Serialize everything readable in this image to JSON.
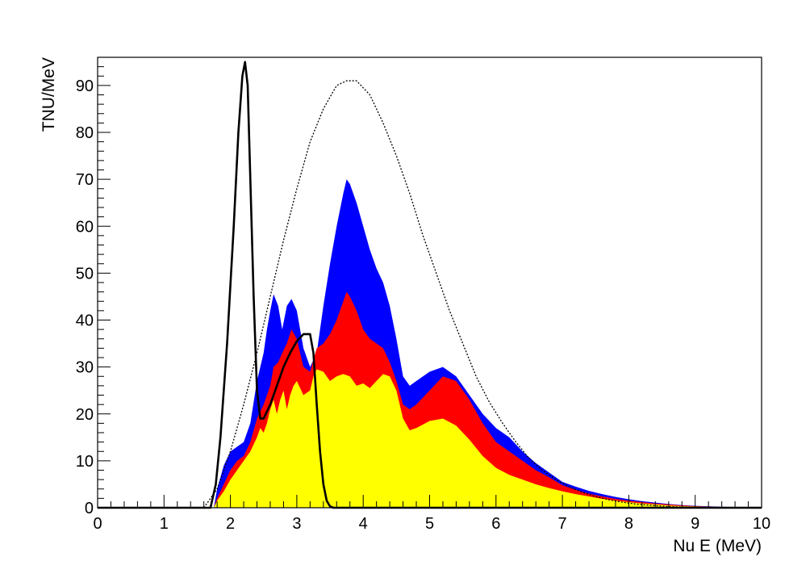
{
  "chart_data": {
    "type": "area",
    "title": "",
    "xlabel": "Nu E (MeV)",
    "ylabel": "TNU/MeV",
    "xlim": [
      0,
      10
    ],
    "ylim": [
      0,
      96
    ],
    "x_ticks": [
      0,
      1,
      2,
      3,
      4,
      5,
      6,
      7,
      8,
      9,
      10
    ],
    "y_ticks": [
      0,
      10,
      20,
      30,
      40,
      50,
      60,
      70,
      80,
      90
    ],
    "grid": false,
    "legend": "none",
    "series": [
      {
        "color": "#0000ff",
        "style": "filled",
        "points": [
          [
            1.75,
            0
          ],
          [
            1.8,
            4
          ],
          [
            1.9,
            9
          ],
          [
            2.0,
            12
          ],
          [
            2.1,
            13
          ],
          [
            2.2,
            14
          ],
          [
            2.3,
            18
          ],
          [
            2.4,
            27
          ],
          [
            2.5,
            33
          ],
          [
            2.55,
            38
          ],
          [
            2.6,
            42
          ],
          [
            2.65,
            45.5
          ],
          [
            2.72,
            43
          ],
          [
            2.78,
            38
          ],
          [
            2.85,
            43
          ],
          [
            2.92,
            44.5
          ],
          [
            3.0,
            42
          ],
          [
            3.1,
            34
          ],
          [
            3.2,
            30
          ],
          [
            3.3,
            33
          ],
          [
            3.4,
            43
          ],
          [
            3.5,
            52
          ],
          [
            3.6,
            60
          ],
          [
            3.7,
            67
          ],
          [
            3.75,
            70
          ],
          [
            3.8,
            69
          ],
          [
            3.9,
            65
          ],
          [
            4.0,
            60
          ],
          [
            4.1,
            55
          ],
          [
            4.2,
            51
          ],
          [
            4.3,
            48
          ],
          [
            4.4,
            43
          ],
          [
            4.5,
            36
          ],
          [
            4.6,
            28
          ],
          [
            4.7,
            26
          ],
          [
            4.8,
            27
          ],
          [
            5.0,
            29
          ],
          [
            5.2,
            30
          ],
          [
            5.4,
            28
          ],
          [
            5.6,
            24
          ],
          [
            5.8,
            20
          ],
          [
            6.0,
            17
          ],
          [
            6.2,
            15
          ],
          [
            6.4,
            12
          ],
          [
            6.6,
            9.5
          ],
          [
            6.8,
            7.5
          ],
          [
            7.0,
            5.5
          ],
          [
            7.2,
            4.5
          ],
          [
            7.4,
            3.6
          ],
          [
            7.6,
            2.9
          ],
          [
            7.8,
            2.3
          ],
          [
            8.0,
            1.8
          ],
          [
            8.2,
            1.4
          ],
          [
            8.4,
            1.1
          ],
          [
            8.6,
            0.8
          ],
          [
            8.8,
            0.55
          ],
          [
            9.0,
            0.4
          ],
          [
            9.3,
            0.25
          ],
          [
            9.6,
            0.12
          ],
          [
            10.0,
            0
          ]
        ]
      },
      {
        "color": "#ff0000",
        "style": "filled",
        "points": [
          [
            1.75,
            0
          ],
          [
            1.8,
            2
          ],
          [
            1.9,
            5
          ],
          [
            2.0,
            8
          ],
          [
            2.1,
            10
          ],
          [
            2.2,
            11
          ],
          [
            2.3,
            14
          ],
          [
            2.4,
            19
          ],
          [
            2.5,
            22
          ],
          [
            2.6,
            26
          ],
          [
            2.65,
            30
          ],
          [
            2.72,
            31
          ],
          [
            2.78,
            33
          ],
          [
            2.85,
            35
          ],
          [
            2.92,
            38
          ],
          [
            3.0,
            36
          ],
          [
            3.1,
            30
          ],
          [
            3.2,
            29
          ],
          [
            3.3,
            34
          ],
          [
            3.4,
            35
          ],
          [
            3.5,
            37
          ],
          [
            3.6,
            40
          ],
          [
            3.7,
            44
          ],
          [
            3.75,
            46
          ],
          [
            3.8,
            45
          ],
          [
            3.9,
            42
          ],
          [
            4.0,
            38
          ],
          [
            4.1,
            36
          ],
          [
            4.2,
            35
          ],
          [
            4.3,
            34
          ],
          [
            4.4,
            31
          ],
          [
            4.5,
            27
          ],
          [
            4.6,
            22
          ],
          [
            4.7,
            21
          ],
          [
            4.8,
            22
          ],
          [
            5.0,
            25
          ],
          [
            5.2,
            28
          ],
          [
            5.4,
            27
          ],
          [
            5.6,
            23
          ],
          [
            5.8,
            18
          ],
          [
            6.0,
            14
          ],
          [
            6.2,
            12
          ],
          [
            6.4,
            10
          ],
          [
            6.6,
            8
          ],
          [
            6.8,
            6.5
          ],
          [
            7.0,
            4.8
          ],
          [
            7.2,
            3.8
          ],
          [
            7.4,
            3.0
          ],
          [
            7.6,
            2.4
          ],
          [
            7.8,
            1.9
          ],
          [
            8.0,
            1.5
          ],
          [
            8.2,
            1.2
          ],
          [
            8.4,
            0.9
          ],
          [
            8.6,
            0.7
          ],
          [
            8.8,
            0.5
          ],
          [
            9.0,
            0.35
          ],
          [
            9.3,
            0.2
          ],
          [
            9.6,
            0.1
          ],
          [
            10.0,
            0
          ]
        ]
      },
      {
        "color": "#ffff00",
        "style": "filled",
        "points": [
          [
            1.75,
            0
          ],
          [
            1.8,
            1.5
          ],
          [
            1.9,
            3.5
          ],
          [
            2.0,
            6
          ],
          [
            2.1,
            8
          ],
          [
            2.2,
            10
          ],
          [
            2.3,
            12
          ],
          [
            2.4,
            15
          ],
          [
            2.45,
            17
          ],
          [
            2.5,
            16
          ],
          [
            2.55,
            18
          ],
          [
            2.6,
            21
          ],
          [
            2.65,
            23
          ],
          [
            2.7,
            20
          ],
          [
            2.75,
            23
          ],
          [
            2.8,
            25
          ],
          [
            2.85,
            21
          ],
          [
            2.9,
            24
          ],
          [
            2.95,
            26
          ],
          [
            3.0,
            27
          ],
          [
            3.1,
            24
          ],
          [
            3.2,
            25
          ],
          [
            3.25,
            28
          ],
          [
            3.3,
            29.5
          ],
          [
            3.4,
            29
          ],
          [
            3.5,
            27
          ],
          [
            3.6,
            28
          ],
          [
            3.7,
            28.5
          ],
          [
            3.8,
            28
          ],
          [
            3.9,
            26
          ],
          [
            4.0,
            26.5
          ],
          [
            4.1,
            25.5
          ],
          [
            4.2,
            27
          ],
          [
            4.3,
            28.5
          ],
          [
            4.4,
            28
          ],
          [
            4.5,
            25
          ],
          [
            4.6,
            19
          ],
          [
            4.7,
            16.5
          ],
          [
            4.8,
            17
          ],
          [
            5.0,
            18.5
          ],
          [
            5.2,
            19
          ],
          [
            5.4,
            17.5
          ],
          [
            5.6,
            14.5
          ],
          [
            5.8,
            11
          ],
          [
            6.0,
            8.5
          ],
          [
            6.2,
            7
          ],
          [
            6.4,
            6
          ],
          [
            6.6,
            5
          ],
          [
            6.8,
            4.2
          ],
          [
            7.0,
            3.5
          ],
          [
            7.2,
            2.9
          ],
          [
            7.4,
            2.4
          ],
          [
            7.6,
            1.9
          ],
          [
            7.8,
            1.5
          ],
          [
            8.0,
            1.2
          ],
          [
            8.2,
            0.9
          ],
          [
            8.4,
            0.7
          ],
          [
            8.6,
            0.5
          ],
          [
            8.8,
            0.35
          ],
          [
            9.0,
            0.25
          ],
          [
            9.3,
            0.15
          ],
          [
            9.6,
            0.08
          ],
          [
            10.0,
            0
          ]
        ]
      },
      {
        "color": "#000000",
        "style": "solid-line",
        "points": [
          [
            0,
            0
          ],
          [
            1.7,
            0
          ],
          [
            1.78,
            5
          ],
          [
            1.85,
            15
          ],
          [
            1.95,
            35
          ],
          [
            2.05,
            60
          ],
          [
            2.12,
            80
          ],
          [
            2.18,
            92
          ],
          [
            2.22,
            95
          ],
          [
            2.26,
            90
          ],
          [
            2.3,
            70
          ],
          [
            2.35,
            45
          ],
          [
            2.4,
            25
          ],
          [
            2.45,
            19
          ],
          [
            2.5,
            19
          ],
          [
            2.6,
            22
          ],
          [
            2.7,
            26
          ],
          [
            2.8,
            30
          ],
          [
            2.9,
            33
          ],
          [
            3.0,
            35.5
          ],
          [
            3.1,
            37
          ],
          [
            3.2,
            37
          ],
          [
            3.25,
            33
          ],
          [
            3.3,
            22
          ],
          [
            3.35,
            12
          ],
          [
            3.4,
            5
          ],
          [
            3.45,
            1.5
          ],
          [
            3.5,
            0.3
          ],
          [
            3.55,
            0
          ],
          [
            10.0,
            0
          ]
        ]
      },
      {
        "color": "#000000",
        "style": "dotted-line",
        "points": [
          [
            1.6,
            0
          ],
          [
            1.8,
            4
          ],
          [
            2.0,
            12
          ],
          [
            2.2,
            22
          ],
          [
            2.4,
            33
          ],
          [
            2.6,
            45
          ],
          [
            2.8,
            57
          ],
          [
            3.0,
            68
          ],
          [
            3.2,
            78
          ],
          [
            3.4,
            85
          ],
          [
            3.6,
            90
          ],
          [
            3.75,
            91
          ],
          [
            3.9,
            91
          ],
          [
            4.1,
            88
          ],
          [
            4.3,
            82
          ],
          [
            4.5,
            75
          ],
          [
            4.7,
            67
          ],
          [
            4.9,
            58
          ],
          [
            5.1,
            50
          ],
          [
            5.3,
            42
          ],
          [
            5.5,
            35
          ],
          [
            5.7,
            28
          ],
          [
            5.9,
            22.5
          ],
          [
            6.1,
            18
          ],
          [
            6.3,
            14
          ],
          [
            6.5,
            10.5
          ],
          [
            6.7,
            8
          ],
          [
            6.9,
            6
          ],
          [
            7.1,
            4.5
          ],
          [
            7.3,
            3.3
          ],
          [
            7.5,
            2.4
          ],
          [
            7.7,
            1.7
          ],
          [
            7.9,
            1.2
          ],
          [
            8.1,
            0.8
          ],
          [
            8.3,
            0.55
          ],
          [
            8.5,
            0.35
          ],
          [
            8.7,
            0.2
          ],
          [
            8.9,
            0.12
          ],
          [
            9.2,
            0.05
          ],
          [
            9.6,
            0.01
          ],
          [
            10.0,
            0
          ]
        ]
      }
    ]
  }
}
